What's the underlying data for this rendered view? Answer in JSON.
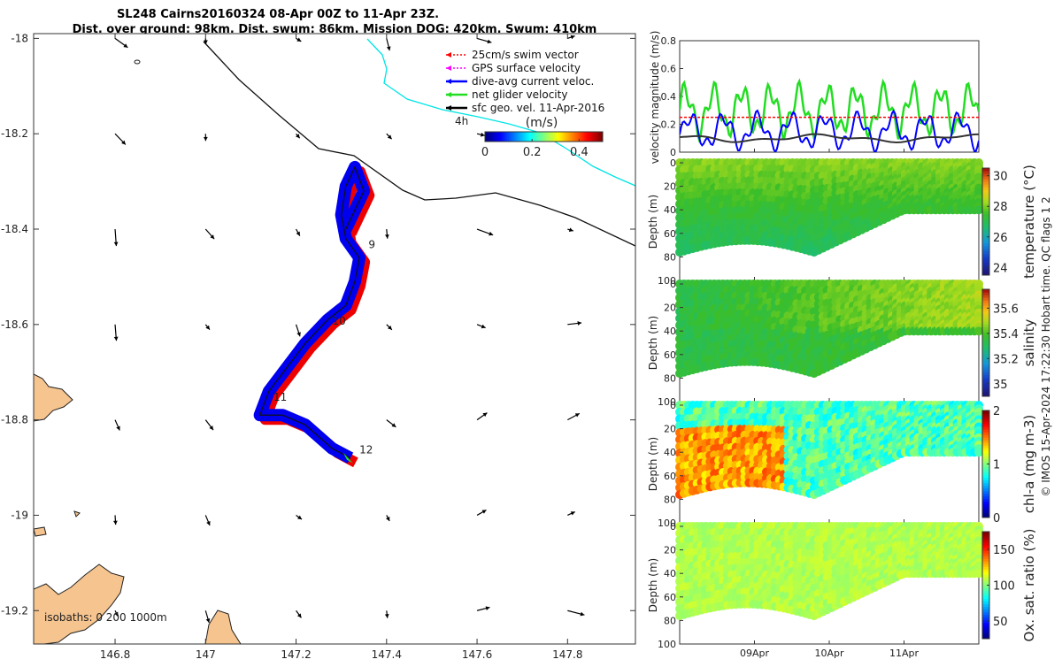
{
  "title": {
    "line1": "SL248 Cairns20160324 08-Apr 00Z to 11-Apr 23Z.",
    "line2": "Dist. over ground: 98km. Dist. swum: 86km. Mission DOG: 420km. Swum: 410km"
  },
  "credit": "© IMOS 15-Apr-2024 17:22:30 Hobart time. QC flags 1  2",
  "colors": {
    "swim_vector": "#ff0000",
    "gps_velocity": "#ff00ff",
    "current": "#0000ff",
    "net_velocity": "#22dd22",
    "sfc_geo": "#000000",
    "land": "#f6c48f",
    "track_blue": "#0000ee",
    "track_red": "#ee0000",
    "cyan_contour": "#00e5e5"
  },
  "chart_data": [
    {
      "type": "scatter",
      "name": "map",
      "xlim": [
        146.62,
        147.95
      ],
      "ylim": [
        -19.27,
        -17.99
      ],
      "xticks": [
        146.8,
        147,
        147.2,
        147.4,
        147.6,
        147.8
      ],
      "xtick_labels": [
        "146.8",
        "147",
        "147.2",
        "147.4",
        "147.6",
        "147.8"
      ],
      "yticks": [
        -18,
        -18.2,
        -18.4,
        -18.6,
        -18.8,
        -19,
        -19.2
      ],
      "ytick_labels": [
        "-18",
        "-18.2",
        "-18.4",
        "-18.6",
        "-18.8",
        "-19",
        "-19.2"
      ],
      "legend": [
        {
          "label": "25cm/s swim vector",
          "color": "#ff0000",
          "style": "dotted"
        },
        {
          "label": "GPS surface velocity",
          "color": "#ff00ff",
          "style": "dotted"
        },
        {
          "label": "dive-avg current veloc.",
          "color": "#0000ff",
          "style": "solid"
        },
        {
          "label": "net glider velocity",
          "color": "#22dd22",
          "style": "solid"
        },
        {
          "label": "sfc geo. vel. 11-Apr-2016",
          "color": "#000000",
          "style": "solid"
        }
      ],
      "legend_position": "top-right",
      "colorbar": {
        "label": "(m/s)",
        "ticks": [
          "0",
          "0.2",
          "0.4"
        ],
        "range": [
          0,
          0.5
        ],
        "scale_label": "4h"
      },
      "isobath_label": "isobaths: 0   200   1000m",
      "track": [
        [
          147.32,
          -18.88
        ],
        [
          147.28,
          -18.86
        ],
        [
          147.22,
          -18.81
        ],
        [
          147.17,
          -18.79
        ],
        [
          147.12,
          -18.79
        ],
        [
          147.14,
          -18.74
        ],
        [
          147.18,
          -18.69
        ],
        [
          147.22,
          -18.64
        ],
        [
          147.27,
          -18.59
        ],
        [
          147.31,
          -18.56
        ],
        [
          147.33,
          -18.51
        ],
        [
          147.34,
          -18.46
        ],
        [
          147.31,
          -18.42
        ],
        [
          147.3,
          -18.37
        ],
        [
          147.31,
          -18.31
        ],
        [
          147.33,
          -18.27
        ],
        [
          147.35,
          -18.32
        ],
        [
          147.33,
          -18.36
        ],
        [
          147.31,
          -18.4
        ]
      ],
      "day_labels": [
        {
          "text": "9",
          "lon": 147.36,
          "lat": -18.44
        },
        {
          "text": "10",
          "lon": 147.28,
          "lat": -18.6
        },
        {
          "text": "11",
          "lon": 147.15,
          "lat": -18.76
        },
        {
          "text": "12",
          "lon": 147.34,
          "lat": -18.87
        }
      ],
      "vector_grid": {
        "lons": [
          146.8,
          147.0,
          147.2,
          147.4,
          147.6,
          147.8
        ],
        "lats": [
          -18.0,
          -18.2,
          -18.4,
          -18.6,
          -18.8,
          -19.0,
          -19.2
        ]
      }
    },
    {
      "type": "line",
      "name": "velocity",
      "ylabel": "velocity magnitude (m/s)",
      "ylim": [
        0,
        0.8
      ],
      "yticks": [
        0,
        0.2,
        0.4,
        0.6,
        0.8
      ],
      "ytick_labels": [
        "0",
        "0.2",
        "0.4",
        "0.6",
        "0.8"
      ],
      "x_days": [
        8,
        12
      ],
      "series": [
        {
          "name": "net glider velocity",
          "color": "#22dd22",
          "mean": 0.3,
          "amp": 0.14,
          "period": 0.38
        },
        {
          "name": "dive-avg current veloc.",
          "color": "#0000ff",
          "mean": 0.15,
          "amp": 0.1,
          "period": 0.45
        },
        {
          "name": "sfc geo. vel.",
          "color": "#333333",
          "mean": 0.1,
          "amp": 0.02,
          "period": 2.0
        },
        {
          "name": "25cm/s swim vector",
          "color": "#ff0000",
          "mean": 0.25,
          "amp": 0.0,
          "period": 1.0
        }
      ]
    },
    {
      "type": "heatmap",
      "name": "temperature",
      "ylabel": "Depth (m)",
      "cblabel": "temperature (°C)",
      "clim": [
        23.5,
        30.5
      ],
      "cbticks": [
        "24",
        "26",
        "28",
        "30"
      ],
      "yticks": [
        "0",
        "20",
        "40",
        "60",
        "80",
        "100"
      ],
      "typical": 28.6
    },
    {
      "type": "heatmap",
      "name": "salinity",
      "ylabel": "Depth (m)",
      "cblabel": "salinity",
      "clim": [
        34.9,
        35.75
      ],
      "cbticks": [
        "35",
        "35.2",
        "35.4",
        "35.6"
      ],
      "yticks": [
        "0",
        "20",
        "40",
        "60",
        "80",
        "100"
      ],
      "typical": 35.35
    },
    {
      "type": "heatmap",
      "name": "chlorophyll",
      "ylabel": "Depth (m)",
      "cblabel": "chl-a (mg m-3)",
      "clim": [
        0,
        2
      ],
      "cbticks": [
        "0",
        "1",
        "2"
      ],
      "yticks": [
        "0",
        "20",
        "40",
        "60",
        "80",
        "100"
      ],
      "typical": 0.8
    },
    {
      "type": "heatmap",
      "name": "oxygen",
      "ylabel": "Depth (m)",
      "cblabel": "Ox. sat. ratio (%)",
      "clim": [
        25,
        175
      ],
      "cbticks": [
        "50",
        "100",
        "150"
      ],
      "yticks": [
        "0",
        "20",
        "40",
        "60",
        "80",
        "100"
      ],
      "typical": 108
    }
  ],
  "time_axis": {
    "ticks": [
      "09Apr",
      "10Apr",
      "11Apr"
    ],
    "days": [
      9,
      10,
      11
    ]
  }
}
